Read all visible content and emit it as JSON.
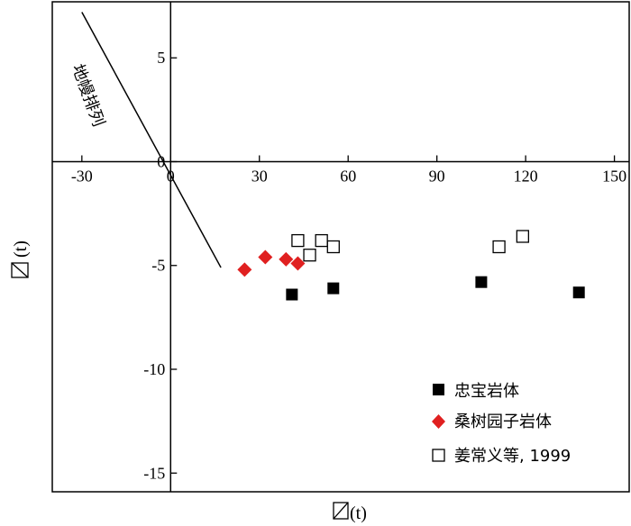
{
  "chart_data": {
    "type": "scatter",
    "xlabel": "(t)",
    "ylabel": "(t)",
    "xlim": [
      -40,
      155
    ],
    "ylim": [
      -15.9,
      7.7
    ],
    "x_ticks": [
      -30,
      0,
      30,
      60,
      90,
      120,
      150
    ],
    "y_ticks": [
      5,
      0,
      -5,
      -10,
      -15
    ],
    "x_tick_labels": [
      "-30",
      "0",
      "30",
      "60",
      "90",
      "120",
      "150"
    ],
    "y_tick_labels": [
      "5",
      "0",
      "-5",
      "-10",
      "-15"
    ],
    "grid": false,
    "legend_position": "bottom-right",
    "reference_line": {
      "label": "地幔排列",
      "points": [
        [
          -30,
          7.2
        ],
        [
          17,
          -5.1
        ]
      ]
    },
    "series": [
      {
        "name": "忠宝岩体",
        "marker": "filled-square",
        "color": "#000000",
        "points": [
          [
            41,
            -6.4
          ],
          [
            55,
            -6.1
          ],
          [
            105,
            -5.8
          ],
          [
            138,
            -6.3
          ]
        ]
      },
      {
        "name": "桑树园子岩体",
        "marker": "diamond",
        "color": "#e02020",
        "points": [
          [
            25,
            -5.2
          ],
          [
            32,
            -4.6
          ],
          [
            39,
            -4.7
          ],
          [
            43,
            -4.9
          ]
        ]
      },
      {
        "name": "姜常义等, 1999",
        "marker": "open-square",
        "color": "#000000",
        "points": [
          [
            43,
            -3.8
          ],
          [
            47,
            -4.5
          ],
          [
            51,
            -3.8
          ],
          [
            55,
            -4.1
          ],
          [
            111,
            -4.1
          ],
          [
            119,
            -3.6
          ]
        ]
      }
    ]
  }
}
